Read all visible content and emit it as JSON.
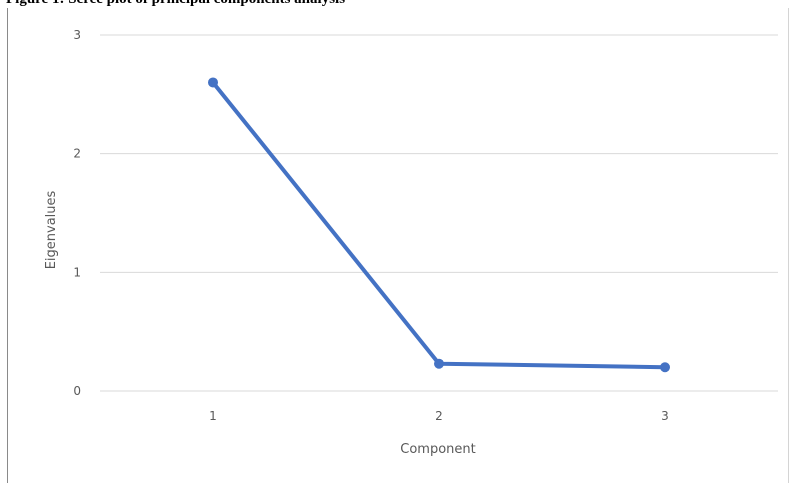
{
  "caption": "Figure 1: Scree plot of principal components analysis",
  "colors": {
    "series": "#4472c4",
    "gridline": "#d9d9d9",
    "text": "#595959"
  },
  "chart_data": {
    "type": "line",
    "title": "",
    "xlabel": "Component",
    "ylabel": "Eigenvalues",
    "categories": [
      "1",
      "2",
      "3"
    ],
    "series": [
      {
        "values": [
          2.6,
          0.23,
          0.2
        ]
      }
    ],
    "yticks": [
      "0",
      "1",
      "2",
      "3"
    ],
    "ylim": [
      0,
      3
    ],
    "grid": true,
    "legend": "none",
    "markers": true
  }
}
